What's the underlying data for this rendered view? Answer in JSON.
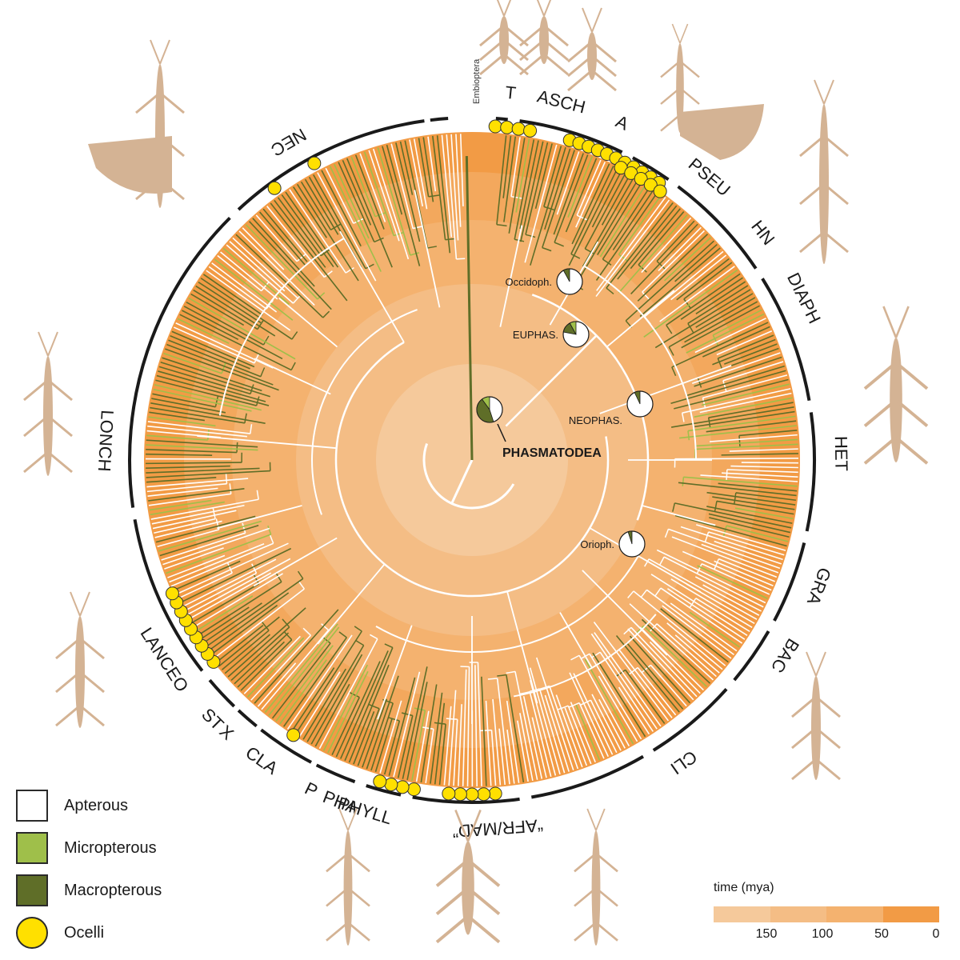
{
  "title": "",
  "colors": {
    "apterous": "#ffffff",
    "micropterous": "#9fbf4a",
    "macropterous": "#5f6e28",
    "ocelli": "#ffe000",
    "silhouette": "#d4b394",
    "band_ring_1": "#f5c99b",
    "band_ring_2": "#f4bd85",
    "band_ring_3": "#f4b26f",
    "band_ring_4": "#f3a85d",
    "band_ring_5": "#f29b45"
  },
  "root_label": "PHASMATODEA",
  "outgroup_label": "Embioptera",
  "clades": [
    {
      "label": "T"
    },
    {
      "label": "ASCH"
    },
    {
      "label": "A"
    },
    {
      "label": "PSEU"
    },
    {
      "label": "HN"
    },
    {
      "label": "DIAPH"
    },
    {
      "label": "HET"
    },
    {
      "label": "GRA"
    },
    {
      "label": "BAC"
    },
    {
      "label": "CLI"
    },
    {
      "label": "“AFR/MAD”"
    },
    {
      "label": "PHYLL"
    },
    {
      "label": "PHA"
    },
    {
      "label": "P"
    },
    {
      "label": "CLA"
    },
    {
      "label": "X"
    },
    {
      "label": "ST"
    },
    {
      "label": "LANCEO"
    },
    {
      "label": "LONCH"
    },
    {
      "label": "NEC"
    }
  ],
  "node_labels": [
    {
      "label": "Occidoph.",
      "apterous": 0.92,
      "micropterous": 0.0,
      "macropterous": 0.08
    },
    {
      "label": "EUPHAS.",
      "apterous": 0.78,
      "micropterous": 0.08,
      "macropterous": 0.14
    },
    {
      "label": "NEOPHAS.",
      "apterous": 0.93,
      "micropterous": 0.0,
      "macropterous": 0.07
    },
    {
      "label": "Orioph.",
      "apterous": 0.95,
      "micropterous": 0.0,
      "macropterous": 0.05
    },
    {
      "label": "",
      "apterous": 0.45,
      "micropterous": 0.1,
      "macropterous": 0.45
    }
  ],
  "legend": [
    {
      "label": "Apterous",
      "color": "#ffffff",
      "shape": "square"
    },
    {
      "label": "Micropterous",
      "color": "#9fbf4a",
      "shape": "square"
    },
    {
      "label": "Macropterous",
      "color": "#5f6e28",
      "shape": "square"
    },
    {
      "label": "Ocelli",
      "color": "#ffe000",
      "shape": "circle"
    }
  ],
  "timescale": {
    "title": "time (mya)",
    "ticks": [
      "150",
      "100",
      "50",
      "0"
    ],
    "segment_colors": [
      "#f5c99b",
      "#f4bd85",
      "#f4b26f",
      "#f29b45"
    ]
  }
}
